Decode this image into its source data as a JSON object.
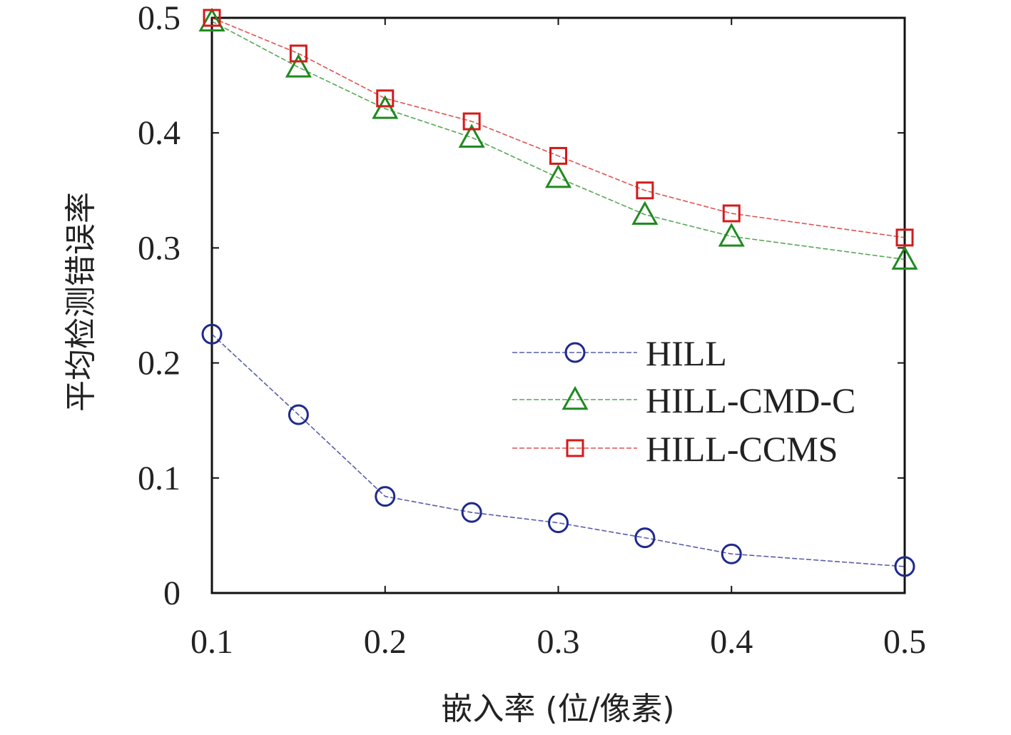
{
  "chart_data": {
    "type": "line",
    "xlabel": "嵌入率 (位/像素)",
    "ylabel": "平均检测错误率",
    "xlim": [
      0.1,
      0.5
    ],
    "ylim": [
      0,
      0.5
    ],
    "xticks": [
      "0.1",
      "0.2",
      "0.3",
      "0.4",
      "0.5"
    ],
    "yticks": [
      "0",
      "0.1",
      "0.2",
      "0.3",
      "0.4",
      "0.5"
    ],
    "x": [
      0.1,
      0.15,
      0.2,
      0.25,
      0.3,
      0.35,
      0.4,
      0.5
    ],
    "series": [
      {
        "name": "HILL",
        "marker": "circle",
        "color": "#1f2a8c",
        "values": [
          0.225,
          0.155,
          0.084,
          0.07,
          0.061,
          0.048,
          0.034,
          0.023
        ]
      },
      {
        "name": "HILL-CMD-C",
        "marker": "triangle",
        "color": "#1f8a1f",
        "values": [
          0.497,
          0.457,
          0.421,
          0.396,
          0.361,
          0.329,
          0.31,
          0.29
        ]
      },
      {
        "name": "HILL-CCMS",
        "marker": "square",
        "color": "#d41a1a",
        "values": [
          0.5,
          0.469,
          0.43,
          0.41,
          0.38,
          0.35,
          0.33,
          0.309
        ]
      }
    ],
    "legend_position": "right-middle",
    "grid": false
  }
}
